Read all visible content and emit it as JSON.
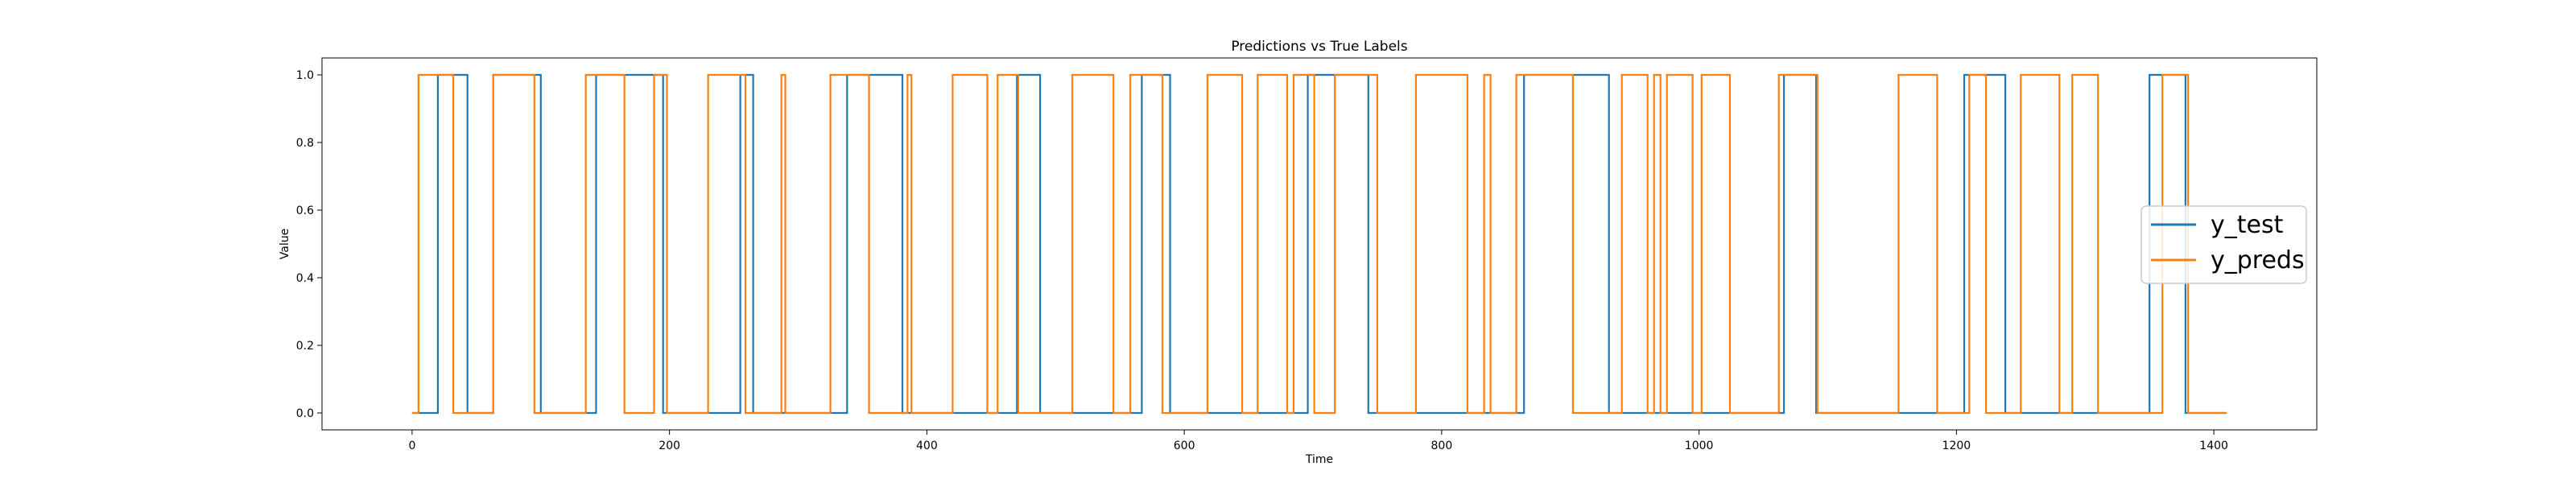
{
  "chart_data": {
    "type": "line",
    "step": true,
    "title": "Predictions vs True Labels",
    "xlabel": "Time",
    "ylabel": "Value",
    "xlim": [
      -70,
      1480
    ],
    "ylim": [
      -0.05,
      1.05
    ],
    "xticks": [
      0,
      200,
      400,
      600,
      800,
      1000,
      1200,
      1400
    ],
    "yticks": [
      0.0,
      0.2,
      0.4,
      0.6,
      0.8,
      1.0
    ],
    "ytick_labels": [
      "0.0",
      "0.2",
      "0.4",
      "0.6",
      "0.8",
      "1.0"
    ],
    "grid": false,
    "legend_position": "center-right",
    "x_end": 1410,
    "series": [
      {
        "name": "y_test",
        "color": "#1f77b4",
        "initial": 0,
        "toggles": [
          20,
          43,
          63,
          100,
          143,
          195,
          255,
          265,
          338,
          381,
          470,
          488,
          567,
          589,
          696,
          743,
          864,
          930,
          1066,
          1091,
          1206,
          1238,
          1350,
          1378
        ]
      },
      {
        "name": "y_preds",
        "color": "#ff7f0e",
        "initial": 0,
        "toggles": [
          5,
          32,
          63,
          95,
          135,
          165,
          188,
          198,
          230,
          259,
          287,
          290,
          325,
          355,
          385,
          388,
          420,
          447,
          455,
          471,
          513,
          545,
          558,
          583,
          618,
          645,
          657,
          680,
          685,
          701,
          717,
          750,
          780,
          820,
          833,
          838,
          858,
          902,
          940,
          960,
          965,
          970,
          975,
          995,
          1002,
          1024,
          1062,
          1092,
          1155,
          1185,
          1210,
          1223,
          1250,
          1280,
          1290,
          1310,
          1360,
          1380
        ]
      }
    ]
  }
}
